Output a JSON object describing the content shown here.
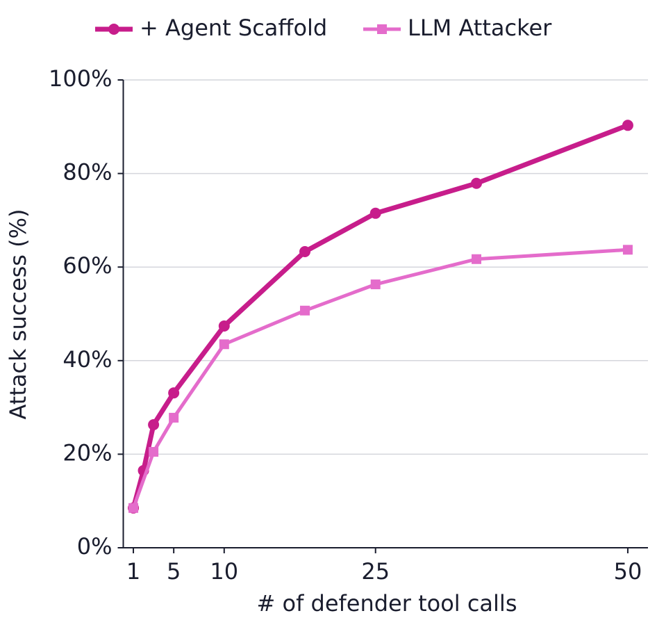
{
  "chart_data": {
    "type": "line",
    "x_label": "# of defender tool calls",
    "y_label": "Attack success (%)",
    "xlim": [
      0,
      52
    ],
    "ylim": [
      0,
      100
    ],
    "xticks": [
      1,
      5,
      10,
      25,
      50
    ],
    "yticks": [
      {
        "value": 0,
        "label": "0%"
      },
      {
        "value": 20,
        "label": "20%"
      },
      {
        "value": 40,
        "label": "40%"
      },
      {
        "value": 60,
        "label": "60%"
      },
      {
        "value": 80,
        "label": "80%"
      },
      {
        "value": 100,
        "label": "100%"
      }
    ],
    "grid": true,
    "legend": "top",
    "series": [
      {
        "name": "+ Agent Scaffold",
        "color": "#c71d8b",
        "marker": "circle",
        "x": [
          1,
          2,
          3,
          5,
          10,
          18,
          25,
          35,
          50
        ],
        "values": [
          8.5,
          16.5,
          26.3,
          33.1,
          47.4,
          63.3,
          71.5,
          77.9,
          90.3
        ]
      },
      {
        "name": "LLM Attacker",
        "color": "#e46ccb",
        "marker": "square",
        "x": [
          1,
          3,
          5,
          10,
          18,
          25,
          35,
          50
        ],
        "values": [
          8.5,
          20.5,
          27.8,
          43.5,
          50.7,
          56.3,
          61.7,
          63.7
        ]
      }
    ]
  }
}
